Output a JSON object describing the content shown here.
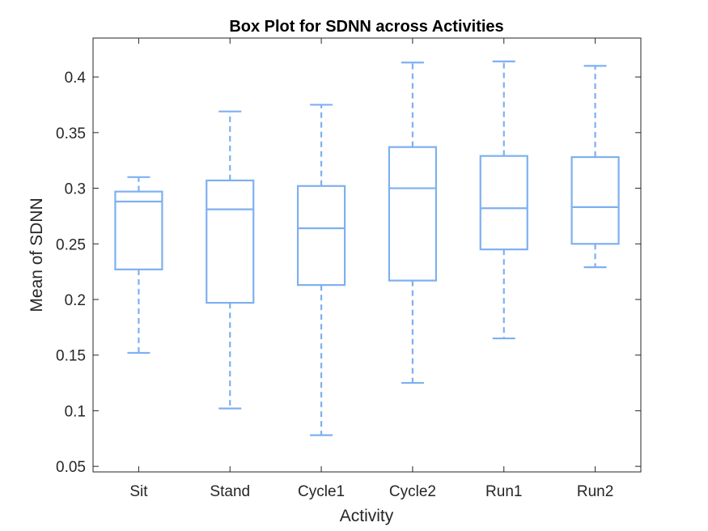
{
  "chart_data": {
    "type": "box",
    "title": "Box Plot for SDNN across Activities",
    "xlabel": "Activity",
    "ylabel": "Mean of SDNN",
    "ylim": [
      0.045,
      0.435
    ],
    "yticks": [
      0.05,
      0.1,
      0.15,
      0.2,
      0.25,
      0.3,
      0.35,
      0.4
    ],
    "ytick_labels": [
      "0.05",
      "0.1",
      "0.15",
      "0.2",
      "0.25",
      "0.3",
      "0.35",
      "0.4"
    ],
    "grid": false,
    "color": "#7eb0f0",
    "categories": [
      "Sit",
      "Stand",
      "Cycle1",
      "Cycle2",
      "Run1",
      "Run2"
    ],
    "boxes": [
      {
        "category": "Sit",
        "min": 0.152,
        "q1": 0.227,
        "median": 0.288,
        "q3": 0.297,
        "max": 0.31
      },
      {
        "category": "Stand",
        "min": 0.102,
        "q1": 0.197,
        "median": 0.281,
        "q3": 0.307,
        "max": 0.369
      },
      {
        "category": "Cycle1",
        "min": 0.078,
        "q1": 0.213,
        "median": 0.264,
        "q3": 0.302,
        "max": 0.375
      },
      {
        "category": "Cycle2",
        "min": 0.125,
        "q1": 0.217,
        "median": 0.3,
        "q3": 0.337,
        "max": 0.413
      },
      {
        "category": "Run1",
        "min": 0.165,
        "q1": 0.245,
        "median": 0.282,
        "q3": 0.329,
        "max": 0.414
      },
      {
        "category": "Run2",
        "min": 0.229,
        "q1": 0.25,
        "median": 0.283,
        "q3": 0.328,
        "max": 0.41
      }
    ]
  }
}
